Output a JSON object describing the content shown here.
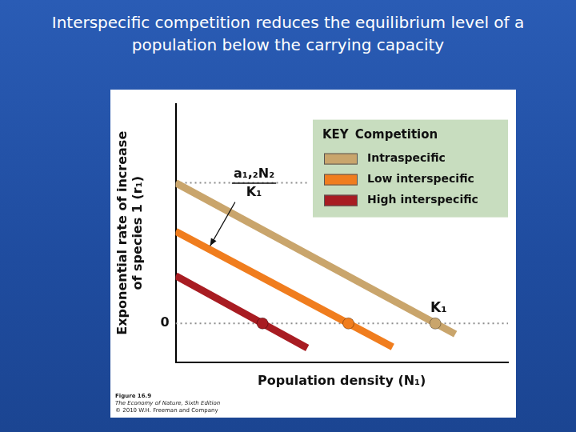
{
  "chart_data": {
    "type": "line",
    "title": "Interspecific competition reduces the equilibrium level of a population below the carrying capacity",
    "xlabel": "Population density (N₁)",
    "ylabel": [
      "Exponential rate of increase",
      "of species 1 (r₁)"
    ],
    "xlim": [
      0,
      10.6
    ],
    "ylim": [
      -1.2,
      6.8
    ],
    "xticks": [],
    "yticks": [
      0
    ],
    "tick_labels": "y",
    "grid": false,
    "legend": "top-right",
    "legend_title": [
      "KEY",
      "Competition"
    ],
    "series": [
      {
        "name": "Intraspecific",
        "color": "#c9a56c",
        "marker": "circle",
        "x": [
          0,
          8.92
        ],
        "values": [
          4.35,
          -0.33
        ],
        "equilibrium": [
          8.28,
          0
        ]
      },
      {
        "name": "Low interspecific",
        "color": "#f07d1e",
        "marker": "circle",
        "x": [
          0,
          6.92
        ],
        "values": [
          2.85,
          -0.73
        ],
        "equilibrium": [
          5.51,
          0
        ]
      },
      {
        "name": "High interspecific",
        "color": "#a81c22",
        "marker": "circle",
        "x": [
          0,
          4.2
        ],
        "values": [
          1.475,
          -0.76
        ],
        "equilibrium": [
          2.77,
          0
        ]
      }
    ],
    "reference_lines": [
      {
        "y": 0,
        "x": [
          0,
          10.6
        ],
        "line_style": "dotted"
      },
      {
        "y": 4.35,
        "x": [
          0,
          4.2
        ],
        "line_style": "dotted"
      }
    ],
    "annotations": [
      {
        "text": [
          "a₁,₂N₂",
          "K₁"
        ],
        "x": 2.5,
        "y": 4.35,
        "arrow_to": [
          1.1,
          2.4
        ]
      },
      {
        "text": [
          "K₁"
        ],
        "x": 8.28,
        "y": 0
      }
    ],
    "caption": [
      "Figure 16.9",
      "The Economy of Nature, Sixth Edition",
      "© 2010 W.H. Freeman and Company"
    ]
  }
}
